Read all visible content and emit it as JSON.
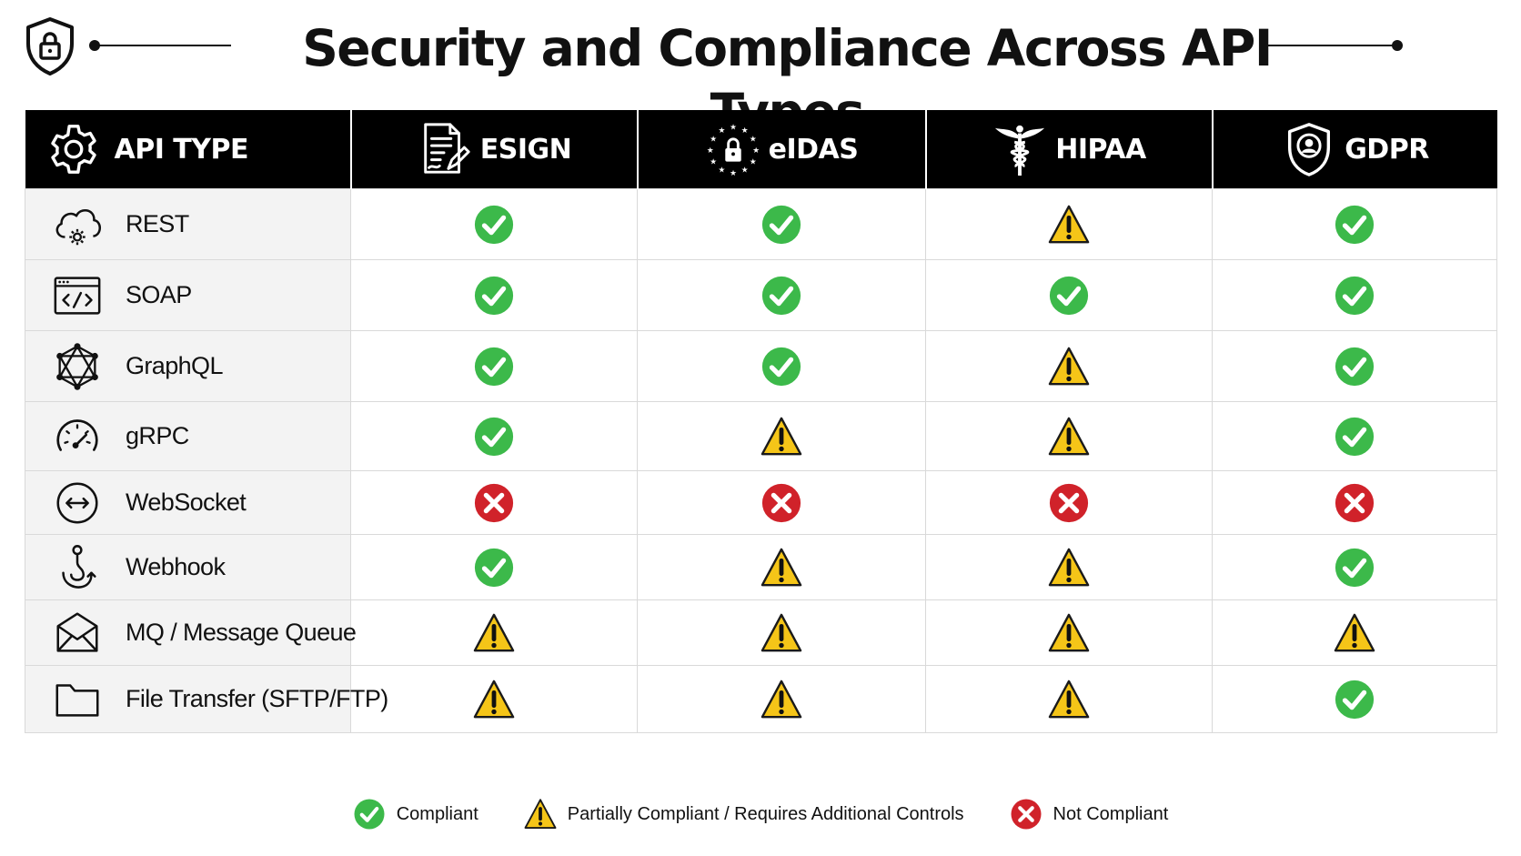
{
  "title": "Security and Compliance Across API Types",
  "header_icon": "lock-shield-icon",
  "colors": {
    "compliant": "#3cb94a",
    "partial": "#f5c518",
    "not_compliant": "#d0222a",
    "header_bg": "#000000",
    "rowhead_bg": "#f3f3f3"
  },
  "columns": [
    {
      "label": "API TYPE",
      "icon": "gear-icon"
    },
    {
      "label": "ESIGN",
      "icon": "signed-document-icon"
    },
    {
      "label": "eIDAS",
      "icon": "eu-stars-lock-icon"
    },
    {
      "label": "HIPAA",
      "icon": "caduceus-icon"
    },
    {
      "label": "GDPR",
      "icon": "user-shield-icon"
    }
  ],
  "rows": [
    {
      "label": "REST",
      "icon": "cloud-gear-icon",
      "status": [
        "compliant",
        "compliant",
        "partial",
        "compliant"
      ]
    },
    {
      "label": "SOAP",
      "icon": "code-window-icon",
      "status": [
        "compliant",
        "compliant",
        "compliant",
        "compliant"
      ]
    },
    {
      "label": "GraphQL",
      "icon": "graph-node-icon",
      "status": [
        "compliant",
        "compliant",
        "partial",
        "compliant"
      ]
    },
    {
      "label": "gRPC",
      "icon": "speedometer-icon",
      "status": [
        "compliant",
        "partial",
        "partial",
        "compliant"
      ]
    },
    {
      "label": "WebSocket",
      "icon": "bidirectional-arrow-icon",
      "status": [
        "not_compliant",
        "not_compliant",
        "not_compliant",
        "not_compliant"
      ]
    },
    {
      "label": "Webhook",
      "icon": "webhook-hook-icon",
      "status": [
        "compliant",
        "partial",
        "partial",
        "compliant"
      ]
    },
    {
      "label": "MQ / Message Queue",
      "icon": "envelope-icon",
      "status": [
        "partial",
        "partial",
        "partial",
        "partial"
      ]
    },
    {
      "label": "File Transfer (SFTP/FTP)",
      "icon": "folder-icon",
      "status": [
        "partial",
        "partial",
        "partial",
        "compliant"
      ]
    }
  ],
  "legend": [
    {
      "status": "compliant",
      "label": "Compliant"
    },
    {
      "status": "partial",
      "label": "Partially Compliant / Requires Additional Controls"
    },
    {
      "status": "not_compliant",
      "label": "Not Compliant"
    }
  ]
}
